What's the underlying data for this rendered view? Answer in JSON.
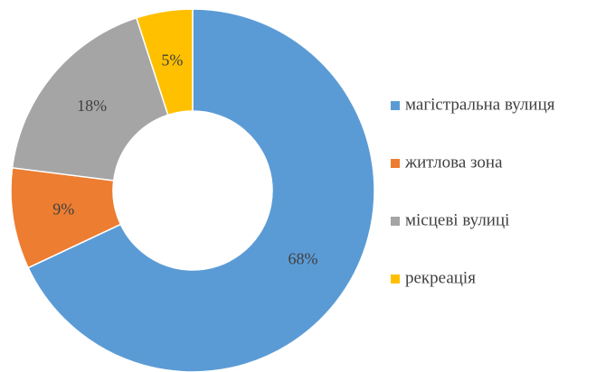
{
  "chart_data": {
    "type": "donut",
    "categories": [
      "магістральна вулиця",
      "житлова зона",
      "місцеві вулиці",
      "рекреація"
    ],
    "values": [
      68,
      9,
      18,
      5
    ],
    "value_labels": [
      "68%",
      "9%",
      "18%",
      "5%"
    ],
    "colors": [
      "#5b9bd5",
      "#ed7d31",
      "#a5a5a5",
      "#ffc000"
    ],
    "legend": "right"
  }
}
